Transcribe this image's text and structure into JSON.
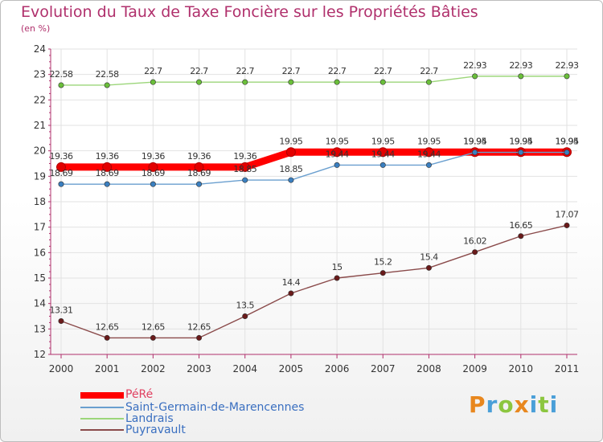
{
  "header": {
    "title": "Evolution du Taux de Taxe Foncière sur les Propriétés Bâties",
    "subtitle": "(en %)"
  },
  "brand": {
    "text": "Proxiti",
    "letters": [
      "P",
      "r",
      "o",
      "x",
      "i",
      "t",
      "i"
    ],
    "colors": [
      "#e8871e",
      "#4a9fd8",
      "#8cc63f",
      "#e8871e",
      "#4a9fd8",
      "#8cc63f",
      "#4a9fd8"
    ]
  },
  "chart_data": {
    "type": "line",
    "title": "Evolution du Taux de Taxe Foncière sur les Propriétés Bâties",
    "ylabel": "(en %)",
    "xlabel": "",
    "categories": [
      "2000",
      "2001",
      "2002",
      "2003",
      "2004",
      "2005",
      "2006",
      "2007",
      "2008",
      "2009",
      "2010",
      "2011"
    ],
    "ylim": [
      12,
      24
    ],
    "yticks": [
      12,
      13,
      14,
      15,
      16,
      17,
      18,
      19,
      20,
      21,
      22,
      23,
      24
    ],
    "grid": true,
    "legend_position": "bottom-left",
    "series": [
      {
        "name": "PéRé",
        "color": "#ff0000",
        "marker_color": "#e30000",
        "emphasis": true,
        "values": [
          19.36,
          19.36,
          19.36,
          19.36,
          19.36,
          19.95,
          19.95,
          19.95,
          19.95,
          19.95,
          19.95,
          19.95
        ],
        "labels": [
          "19.36",
          "19.36",
          "19.36",
          "19.36",
          "19.36",
          "19.95",
          "19.95",
          "19.95",
          "19.95",
          "19.95",
          "19.95",
          "19.95"
        ]
      },
      {
        "name": "Saint-Germain-de-Marencennes",
        "color": "#6a9fcf",
        "marker_color": "#3a7fc0",
        "emphasis": false,
        "values": [
          18.69,
          18.69,
          18.69,
          18.69,
          18.85,
          18.85,
          19.44,
          19.44,
          19.44,
          19.94,
          19.94,
          19.94
        ],
        "labels": [
          "18.69",
          "18.69",
          "18.69",
          "18.69",
          "18.85",
          "18.85",
          "19.44",
          "19.44",
          "19.44",
          "19.94",
          "19.94",
          "19.94"
        ]
      },
      {
        "name": "Landrais",
        "color": "#9cd67a",
        "marker_color": "#6abf3a",
        "emphasis": false,
        "values": [
          22.58,
          22.58,
          22.7,
          22.7,
          22.7,
          22.7,
          22.7,
          22.7,
          22.7,
          22.93,
          22.93,
          22.93
        ],
        "labels": [
          "22.58",
          "22.58",
          "22.7",
          "22.7",
          "22.7",
          "22.7",
          "22.7",
          "22.7",
          "22.7",
          "22.93",
          "22.93",
          "22.93"
        ]
      },
      {
        "name": "Puyravault",
        "color": "#8a4a4a",
        "marker_color": "#6a1a1a",
        "emphasis": false,
        "values": [
          13.31,
          12.65,
          12.65,
          12.65,
          13.5,
          14.4,
          15,
          15.2,
          15.4,
          16.02,
          16.65,
          17.07
        ],
        "labels": [
          "13.31",
          "12.65",
          "12.65",
          "12.65",
          "13.5",
          "14.4",
          "15",
          "15.2",
          "15.4",
          "16.02",
          "16.65",
          "17.07"
        ]
      }
    ]
  }
}
